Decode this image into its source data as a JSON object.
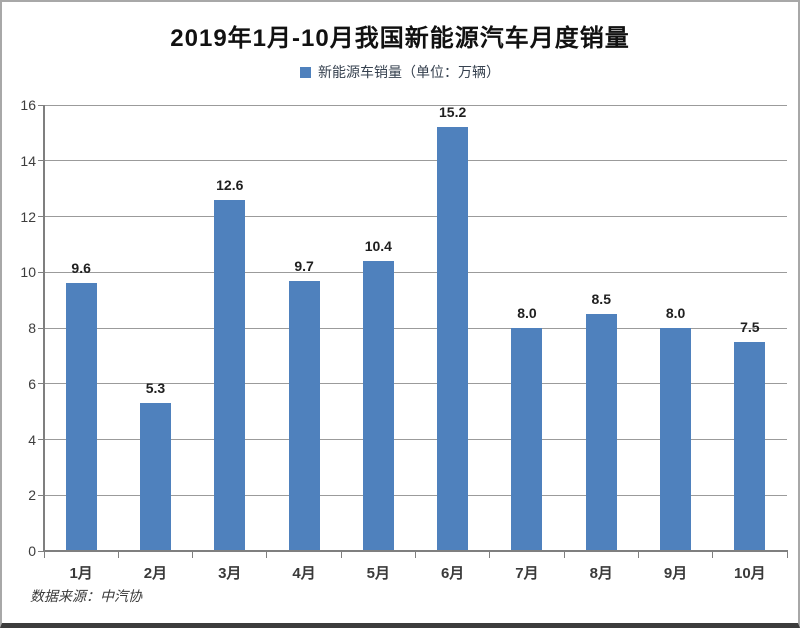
{
  "page": {
    "title": "2019年1月-10月我国新能源汽车月度销量",
    "legend_label": "新能源车销量（单位：万辆）",
    "source_note": "数据来源：中汽协"
  },
  "colors": {
    "bar": "#4F81BD",
    "gridline": "#9b9b9b",
    "axis": "#7f7f7f",
    "title_text": "#111111",
    "legend_text": "#36414f",
    "value_text": "#1f1f1f",
    "tick_text": "#3d3d3d"
  },
  "chart_data": {
    "type": "bar",
    "title": "2019年1月-10月我国新能源汽车月度销量",
    "legend": [
      "新能源车销量（单位：万辆）"
    ],
    "legend_position": "top",
    "categories": [
      "1月",
      "2月",
      "3月",
      "4月",
      "5月",
      "6月",
      "7月",
      "8月",
      "9月",
      "10月"
    ],
    "values": [
      9.6,
      5.3,
      12.6,
      9.7,
      10.4,
      15.2,
      8.0,
      8.5,
      8.0,
      7.5
    ],
    "value_labels": [
      "9.6",
      "5.3",
      "12.6",
      "9.7",
      "10.4",
      "15.2",
      "8.0",
      "8.5",
      "8.0",
      "7.5"
    ],
    "xlabel": "",
    "ylabel": "",
    "ylim": [
      0,
      16
    ],
    "ytick_step": 2,
    "ytick_labels": [
      "0",
      "2",
      "4",
      "6",
      "8",
      "10",
      "12",
      "14",
      "16"
    ],
    "grid": true,
    "source": "数据来源：中汽协"
  }
}
